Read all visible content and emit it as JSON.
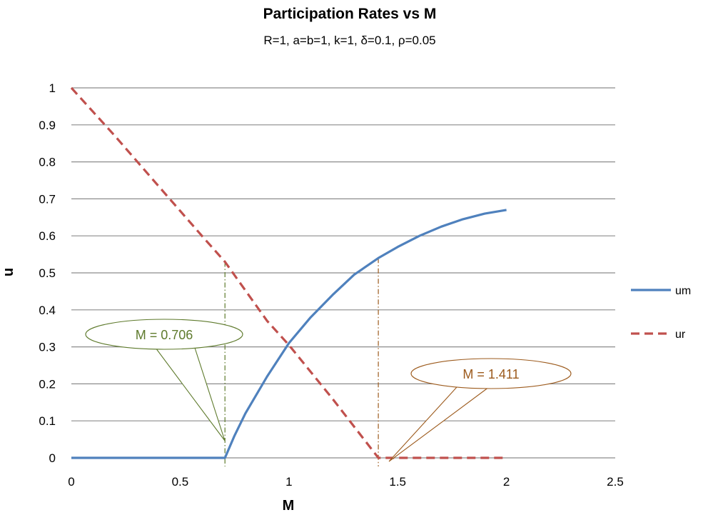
{
  "chart_data": {
    "type": "line",
    "title": "Participation Rates vs M",
    "subtitle": "R=1, a=b=1, k=1, δ=0.1, ρ=0.05",
    "xlabel": "M",
    "ylabel": "u",
    "xlim": [
      0,
      2.5
    ],
    "ylim": [
      0,
      1
    ],
    "xticks": [
      "0",
      "0.5",
      "1",
      "1.5",
      "2",
      "2.5"
    ],
    "yticks": [
      "0",
      "0.1",
      "0.2",
      "0.3",
      "0.4",
      "0.5",
      "0.6",
      "0.7",
      "0.8",
      "0.9",
      "1"
    ],
    "grid": "horizontal",
    "legend_position": "right",
    "series": [
      {
        "name": "um",
        "color": "#4f81bd",
        "dash": "solid",
        "points": [
          [
            0,
            0
          ],
          [
            0.5,
            0
          ],
          [
            0.706,
            0
          ],
          [
            0.75,
            0.06
          ],
          [
            0.8,
            0.12
          ],
          [
            0.9,
            0.22
          ],
          [
            1.0,
            0.31
          ],
          [
            1.1,
            0.38
          ],
          [
            1.2,
            0.44
          ],
          [
            1.3,
            0.495
          ],
          [
            1.411,
            0.54
          ],
          [
            1.5,
            0.57
          ],
          [
            1.6,
            0.6
          ],
          [
            1.7,
            0.625
          ],
          [
            1.8,
            0.645
          ],
          [
            1.9,
            0.66
          ],
          [
            2.0,
            0.67
          ]
        ]
      },
      {
        "name": "ur",
        "color": "#c0504d",
        "dash": "dashed",
        "points": [
          [
            0,
            1
          ],
          [
            0.2,
            0.87
          ],
          [
            0.4,
            0.735
          ],
          [
            0.6,
            0.6
          ],
          [
            0.706,
            0.53
          ],
          [
            0.9,
            0.37
          ],
          [
            1.0,
            0.305
          ],
          [
            1.2,
            0.16
          ],
          [
            1.411,
            0
          ],
          [
            1.6,
            0
          ],
          [
            1.8,
            0
          ],
          [
            2.0,
            0
          ]
        ]
      }
    ],
    "annotations": [
      {
        "text": "M = 0.706",
        "color": "#5e7a2c",
        "x": 0.706,
        "ref_y": 0.53
      },
      {
        "text": "M = 1.411",
        "color": "#9c5a1c",
        "x": 1.411,
        "ref_y": 0.54
      }
    ]
  }
}
